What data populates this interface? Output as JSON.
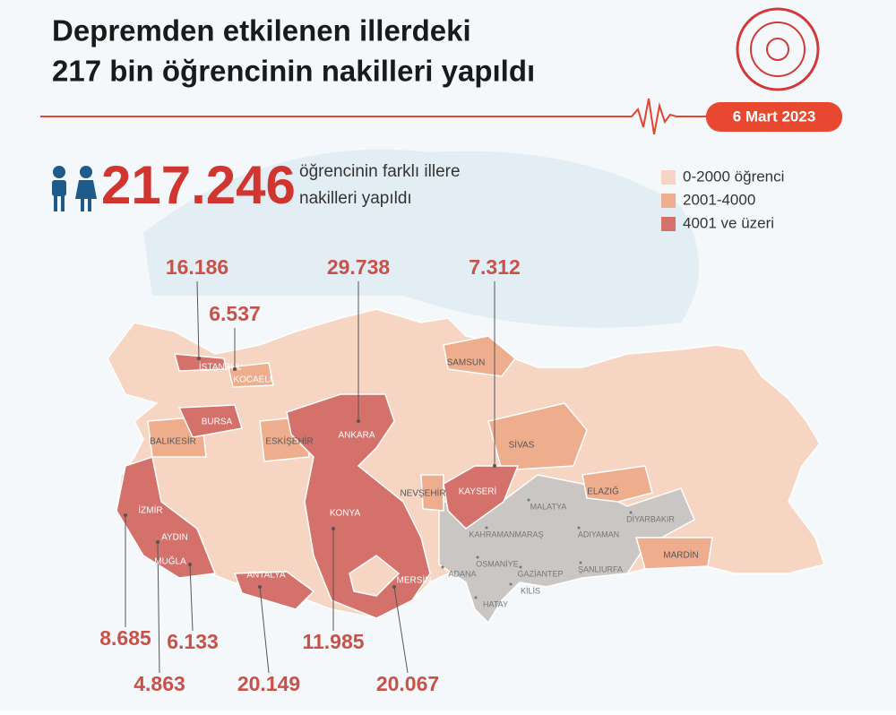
{
  "header": {
    "title_lines": [
      "Depremden etkilenen illerdeki",
      "217 bin öğrencinin nakilleri yapıldı"
    ],
    "date": "6 Mart 2023"
  },
  "summary": {
    "number": "217.246",
    "text_lines": [
      "öğrencinin farklı illere",
      "nakilleri yapıldı"
    ]
  },
  "legend": [
    {
      "label": "0-2000 öğrenci",
      "color": "#f6d5c2"
    },
    {
      "label": "2001-4000",
      "color": "#eeae8e"
    },
    {
      "label": "4001 ve üzeri",
      "color": "#d4716b"
    }
  ],
  "provinces": [
    {
      "name": "İSTANBUL",
      "value": "16.186"
    },
    {
      "name": "KOCAELİ",
      "value": "6.537"
    },
    {
      "name": "ANKARA",
      "value": "29.738"
    },
    {
      "name": "KAYSERİ",
      "value": "7.312"
    },
    {
      "name": "İZMİR",
      "value": "8.685"
    },
    {
      "name": "AYDIN",
      "value": "4.863"
    },
    {
      "name": "MUĞLA",
      "value": "6.133"
    },
    {
      "name": "ANTALYA",
      "value": "20.149"
    },
    {
      "name": "KONYA",
      "value": "11.985"
    },
    {
      "name": "MERSİN",
      "value": "20.067"
    },
    {
      "name": "BURSA"
    }
  ],
  "other_labels": [
    "SAMSUN",
    "BALIKESİR",
    "ESKİŞEHİR",
    "SİVAS",
    "NEVŞEHİR",
    "ELAZIĞ",
    "MARDİN"
  ],
  "earthquake_zone": [
    "MALATYA",
    "DİYARBAKIR",
    "KAHRAMANMARAŞ",
    "ADIYAMAN",
    "OSMANİYE",
    "ADANA",
    "GAZİANTEP",
    "ŞANLIURFA",
    "KİLİS",
    "HATAY"
  ]
}
